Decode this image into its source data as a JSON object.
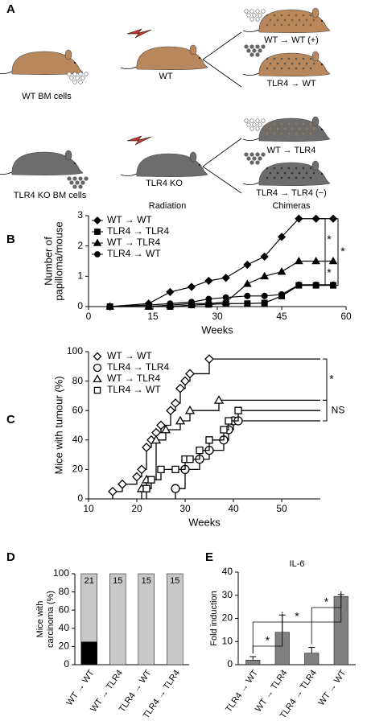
{
  "figure": {
    "panels": [
      "A",
      "B",
      "C",
      "D",
      "E"
    ]
  },
  "diagram": {
    "donor_wt": "WT BM cells",
    "donor_ko": "TLR4 KO BM cells",
    "recipient_wt": "WT",
    "recipient_ko": "TLR4 KO",
    "treatment": "Radiation",
    "chimeras": [
      "WT → WT (+)",
      "TLR4 → WT",
      "WT → TLR4",
      "TLR4 → TLR4 (−)"
    ],
    "chimeras_label": "Chimeras"
  },
  "chart_data": [
    {
      "type": "line",
      "ylabel": [
        "Number of",
        "papilloma/mouse"
      ],
      "xlabel": "Weeks",
      "xlim": [
        0,
        60
      ],
      "xticks": [
        0,
        15,
        30,
        45,
        60
      ],
      "ylim": [
        0,
        3
      ],
      "yticks": [
        0,
        1,
        2,
        3
      ],
      "legend": "upper left",
      "annotations": [
        "*",
        "*",
        "*"
      ],
      "series": [
        {
          "name": "WT → WT",
          "marker": "diamond",
          "filled": true,
          "color": "#000000",
          "x": [
            5,
            14,
            19,
            24,
            28,
            32,
            37,
            41,
            45,
            49,
            53,
            57
          ],
          "values": [
            0,
            0.1,
            0.48,
            0.65,
            0.85,
            0.95,
            1.38,
            1.65,
            2.3,
            2.9,
            2.9,
            2.9
          ]
        },
        {
          "name": "TLR4 → TLR4",
          "marker": "square",
          "filled": true,
          "color": "#000000",
          "x": [
            5,
            14,
            19,
            24,
            28,
            32,
            37,
            41,
            45,
            49,
            53,
            57
          ],
          "values": [
            0,
            0,
            0,
            0.05,
            0.07,
            0.1,
            0.1,
            0.12,
            0.35,
            0.7,
            0.7,
            0.7
          ]
        },
        {
          "name": "WT → TLR4",
          "marker": "triangle",
          "filled": true,
          "color": "#000000",
          "x": [
            5,
            14,
            19,
            24,
            28,
            32,
            37,
            41,
            45,
            49,
            53,
            57
          ],
          "values": [
            0,
            0,
            0.05,
            0.1,
            0.1,
            0.15,
            0.75,
            1,
            1.15,
            1.5,
            1.5,
            1.5
          ]
        },
        {
          "name": "TLR4 → WT",
          "marker": "circle",
          "filled": true,
          "color": "#000000",
          "x": [
            5,
            14,
            19,
            24,
            28,
            32,
            37,
            41,
            45,
            49,
            53,
            57
          ],
          "values": [
            0,
            0.05,
            0.1,
            0.15,
            0.25,
            0.3,
            0.35,
            0.35,
            0.4,
            0.72,
            0.72,
            0.72
          ]
        }
      ]
    },
    {
      "type": "step",
      "ylabel": [
        "Mice with tumour (%)"
      ],
      "xlabel": "Weeks",
      "xlim": [
        10,
        58
      ],
      "xticks": [
        10,
        20,
        30,
        40,
        50
      ],
      "ylim": [
        0,
        100
      ],
      "yticks": [
        0,
        20,
        40,
        60,
        80,
        100
      ],
      "legend": "upper left",
      "annotations": [
        "*",
        "NS"
      ],
      "series": [
        {
          "name": "WT → WT",
          "marker": "diamond",
          "filled": false,
          "color": "#000000",
          "x": [
            15,
            17,
            20,
            21,
            22,
            23,
            24,
            25,
            27,
            28,
            29,
            30,
            31,
            35
          ],
          "values": [
            5,
            10,
            15,
            20,
            35,
            40,
            45,
            50,
            60,
            65,
            75,
            80,
            85,
            95
          ]
        },
        {
          "name": "TLR4 → TLR4",
          "marker": "circle",
          "filled": false,
          "color": "#000000",
          "x": [
            28,
            30,
            33,
            35,
            38,
            39,
            40,
            41
          ],
          "values": [
            7,
            20,
            27,
            33,
            40,
            47,
            53,
            53
          ]
        },
        {
          "name": "WT → TLR4",
          "marker": "triangle",
          "filled": false,
          "color": "#000000",
          "x": [
            21,
            22,
            24,
            26,
            29,
            31,
            37
          ],
          "values": [
            7,
            13,
            40,
            47,
            53,
            60,
            67
          ]
        },
        {
          "name": "TLR4 → WT",
          "marker": "square",
          "filled": false,
          "color": "#000000",
          "x": [
            22,
            23,
            25,
            28,
            30,
            31,
            33,
            35,
            38,
            39,
            41
          ],
          "values": [
            7,
            13,
            20,
            20,
            27,
            27,
            33,
            40,
            47,
            53,
            60
          ]
        }
      ]
    },
    {
      "type": "stacked_bar",
      "ylabel": [
        "Mice with",
        "carcinoma (%)"
      ],
      "categories": [
        "WT → WT",
        "WT → TLR4",
        "TLR4 → WT",
        "TLR4 → TLR4"
      ],
      "ylim": [
        0,
        100
      ],
      "yticks": [
        0,
        20,
        40,
        60,
        80,
        100
      ],
      "n": [
        21,
        15,
        15,
        15
      ],
      "series": [
        {
          "color": "#000000",
          "values": [
            25,
            0,
            0,
            0
          ]
        },
        {
          "color": "#c8c8c8",
          "values": [
            75,
            100,
            100,
            100
          ]
        }
      ]
    },
    {
      "type": "error_bar",
      "title": "IL-6",
      "ylabel": [
        "Fold induction"
      ],
      "categories": [
        "TLR4 → WT",
        "WT → TLR4",
        "TLR4 → TLR4",
        "WT → WT"
      ],
      "values": [
        2,
        14,
        5,
        29.5
      ],
      "errors": [
        1.5,
        7.5,
        2.5,
        0.8
      ],
      "color": "#808080",
      "ylim": [
        0,
        40
      ],
      "yticks": [
        0,
        10,
        20,
        30,
        40
      ],
      "annotations": [
        "*",
        "*",
        "*"
      ]
    }
  ]
}
